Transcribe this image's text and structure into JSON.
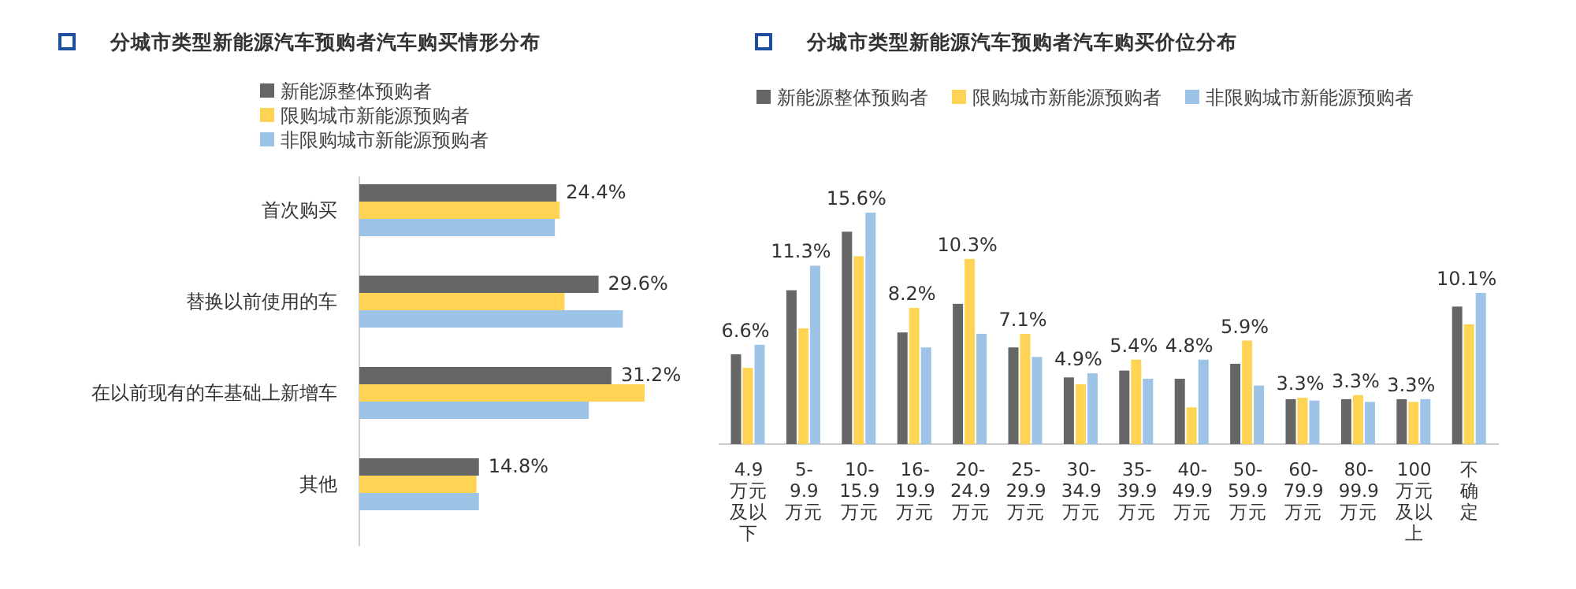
{
  "chart_data": [
    {
      "type": "bar",
      "orientation": "horizontal",
      "title": "分城市类型新能源汽车预购者汽车购买情形分布",
      "categories": [
        "首次购买",
        "替换以前使用的车",
        "在以前现有的车基础上新增车",
        "其他"
      ],
      "legend": "top",
      "series": [
        {
          "name": "新能源整体预购者",
          "color": "#666666",
          "values": [
            24.4,
            29.6,
            31.2,
            14.8
          ],
          "value_labels": [
            "24.4%",
            "29.6%",
            "31.2%",
            "14.8%"
          ]
        },
        {
          "name": "限购城市新能源预购者",
          "color": "#ffd455",
          "values": [
            24.8,
            25.4,
            35.3,
            14.5
          ]
        },
        {
          "name": "非限购城市新能源预购者",
          "color": "#9dc3e6",
          "values": [
            24.2,
            32.6,
            28.4,
            14.8
          ]
        }
      ]
    },
    {
      "type": "bar",
      "title": "分城市类型新能源汽车预购者汽车购买价位分布",
      "categories": [
        "4.9万元及以下",
        "5-9.9万元",
        "10-15.9万元",
        "16-19.9万元",
        "20-24.9万元",
        "25-29.9万元",
        "30-34.9万元",
        "35-39.9万元",
        "40-49.9万元",
        "50-59.9万元",
        "60-79.9万元",
        "80-99.9万元",
        "100万元及以上",
        "不确定"
      ],
      "legend": "top",
      "series": [
        {
          "name": "新能源整体预购者",
          "color": "#666666",
          "values": [
            6.6,
            11.3,
            15.6,
            8.2,
            10.3,
            7.1,
            4.9,
            5.4,
            4.8,
            5.9,
            3.3,
            3.3,
            3.3,
            10.1
          ],
          "value_labels": [
            "6.6%",
            "11.3%",
            "15.6%",
            "8.2%",
            "10.3%",
            "7.1%",
            "4.9%",
            "5.4%",
            "4.8%",
            "5.9%",
            "3.3%",
            "3.3%",
            "3.3%",
            "10.1%"
          ]
        },
        {
          "name": "限购城市新能源预购者",
          "color": "#ffd455",
          "values": [
            5.6,
            8.5,
            13.8,
            10.0,
            13.6,
            8.1,
            4.4,
            6.2,
            2.7,
            7.6,
            3.4,
            3.6,
            3.1,
            8.8
          ]
        },
        {
          "name": "非限购城市新能源预购者",
          "color": "#9dc3e6",
          "values": [
            7.3,
            13.1,
            17.0,
            7.1,
            8.1,
            6.4,
            5.2,
            4.8,
            6.2,
            4.3,
            3.2,
            3.1,
            3.3,
            11.1
          ]
        }
      ]
    }
  ]
}
